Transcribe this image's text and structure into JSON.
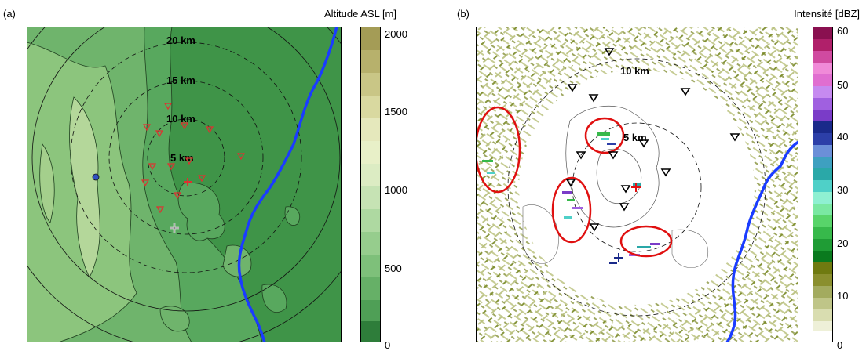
{
  "panel_a": {
    "label": "(a)",
    "colorbar_title": "Altitude ASL [m]",
    "colorbar_ticks": [
      "2000",
      "1500",
      "1000",
      "500",
      "0"
    ],
    "ring_labels": [
      "20 km",
      "15 km",
      "10 km",
      "5 km"
    ],
    "colors": {
      "lowland": "#3f9448",
      "midland": "#58a85e",
      "upland": "#8cc57d",
      "peak": "#b4d79a",
      "river": "#1a3cff",
      "station": "#e03030"
    },
    "colorbar_scale": [
      "#2e7d3a",
      "#3f8f47",
      "#51a057",
      "#66b067",
      "#7ec07a",
      "#96cd8d",
      "#aed9a1",
      "#c6e3b4",
      "#dcecc3",
      "#e5e8bc",
      "#d9d9a0",
      "#c9c686",
      "#b7b16c",
      "#a49c56"
    ]
  },
  "panel_b": {
    "label": "(b)",
    "colorbar_title": "Intensité [dBZ]",
    "colorbar_ticks": [
      "60",
      "50",
      "40",
      "30",
      "20",
      "10",
      "0"
    ],
    "ring_labels": [
      "10 km",
      "5 km"
    ],
    "colors": {
      "river": "#1a3cff",
      "ellipse": "#e01010",
      "station": "#000000"
    },
    "colorbar_scale": [
      "#ffffff",
      "#eef0d8",
      "#d9ddb0",
      "#bfc588",
      "#a3ab5f",
      "#8a8f2e",
      "#6f7a10",
      "#0a7a1e",
      "#1f9c35",
      "#37b94b",
      "#58d46a",
      "#7ae8a2",
      "#8ff0d2",
      "#4fd0c8",
      "#2aa8a8",
      "#3ea0c0",
      "#6b8fd8",
      "#2c3fa8",
      "#1a2a8a",
      "#7a3cc8",
      "#a060e0",
      "#c68af0",
      "#e06ed0",
      "#f08ad8",
      "#d04aa0",
      "#b0206a",
      "#8a1050"
    ]
  }
}
